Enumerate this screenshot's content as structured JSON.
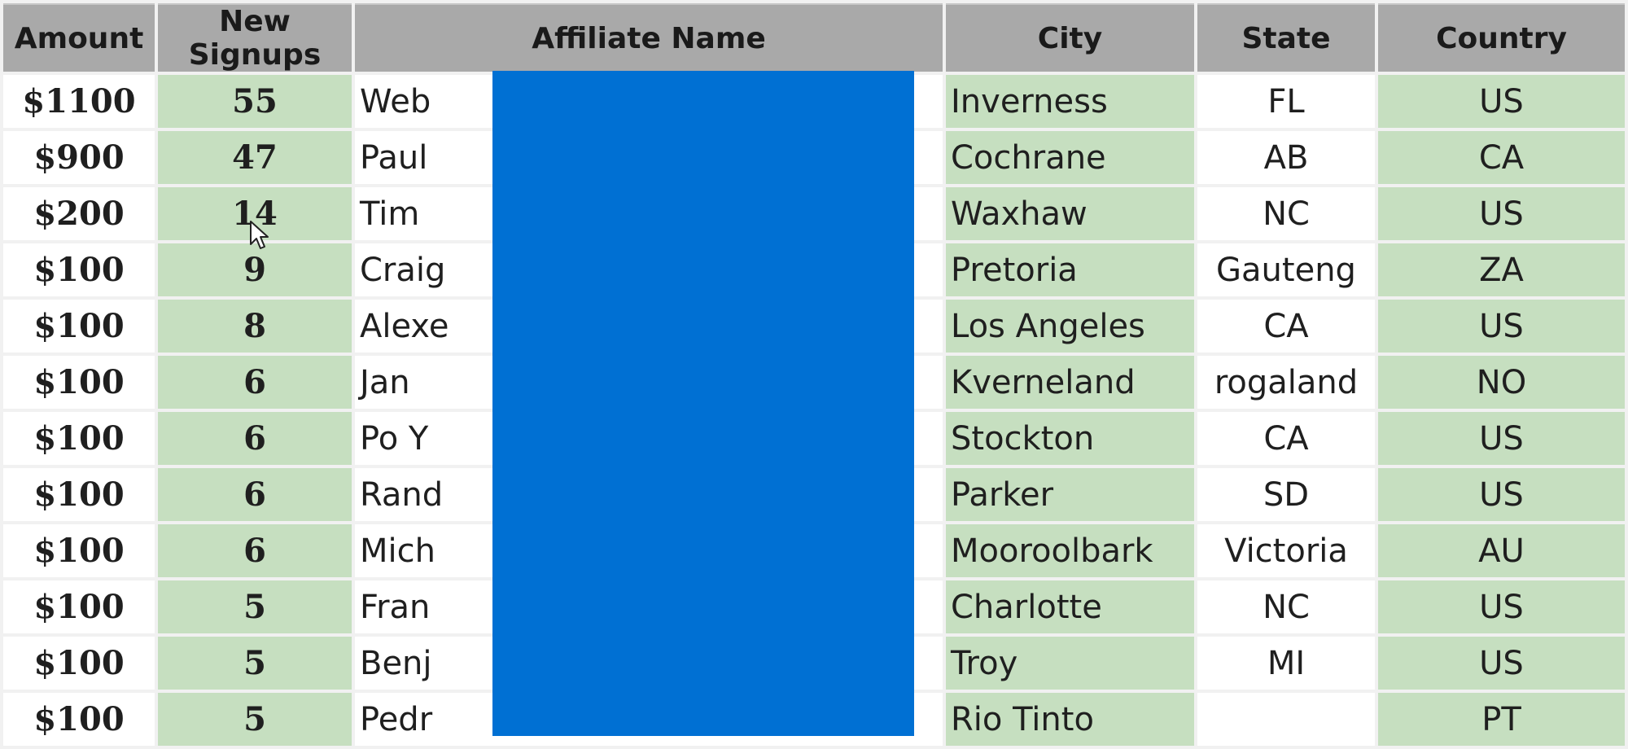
{
  "table": {
    "headers": [
      "Amount",
      "New Signups",
      "Affiliate Name",
      "City",
      "State",
      "Country"
    ],
    "rows": [
      {
        "amount": "$1100",
        "signups": "55",
        "name": "Web",
        "city": "Inverness",
        "state": "FL",
        "country": "US"
      },
      {
        "amount": "$900",
        "signups": "47",
        "name": "Paul",
        "city": "Cochrane",
        "state": "AB",
        "country": "CA"
      },
      {
        "amount": "$200",
        "signups": "14",
        "name": "Tim",
        "city": "Waxhaw",
        "state": "NC",
        "country": "US"
      },
      {
        "amount": "$100",
        "signups": "9",
        "name": "Craig",
        "city": "Pretoria",
        "state": "Gauteng",
        "country": "ZA"
      },
      {
        "amount": "$100",
        "signups": "8",
        "name": "Alexe",
        "city": "Los Angeles",
        "state": "CA",
        "country": "US"
      },
      {
        "amount": "$100",
        "signups": "6",
        "name": "Jan",
        "city": "Kverneland",
        "state": "rogaland",
        "country": "NO"
      },
      {
        "amount": "$100",
        "signups": "6",
        "name": "Po Y",
        "city": "Stockton",
        "state": "CA",
        "country": "US"
      },
      {
        "amount": "$100",
        "signups": "6",
        "name": "Rand",
        "city": "Parker",
        "state": "SD",
        "country": "US"
      },
      {
        "amount": "$100",
        "signups": "6",
        "name": "Mich",
        "city": "Mooroolbark",
        "state": "Victoria",
        "country": "AU"
      },
      {
        "amount": "$100",
        "signups": "5",
        "name": "Fran",
        "city": "Charlotte",
        "state": "NC",
        "country": "US"
      },
      {
        "amount": "$100",
        "signups": "5",
        "name": "Benj",
        "city": "Troy",
        "state": "MI",
        "country": "US"
      },
      {
        "amount": "$100",
        "signups": "5",
        "name": "Pedr",
        "city": "Rio Tinto",
        "state": "",
        "country": "PT"
      }
    ]
  },
  "colors": {
    "header_bg": "#a9a9a9",
    "green_cell": "#c6dfc0",
    "white_cell": "#ffffff",
    "redaction": "#0070d3"
  }
}
